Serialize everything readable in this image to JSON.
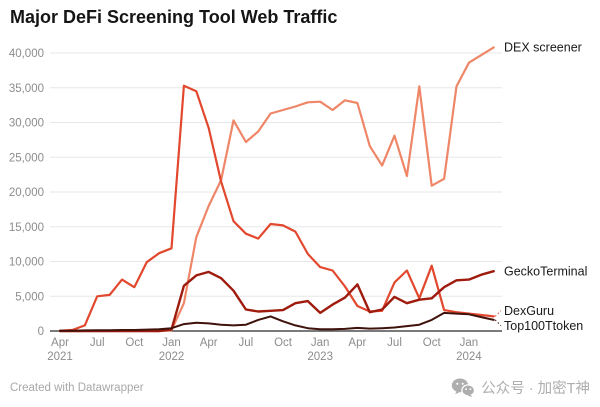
{
  "title": "Major DeFi Screening Tool Web Traffic",
  "footer": {
    "left": "Created with Datawrapper",
    "right": "公众号 · 加密T神"
  },
  "colors": {
    "grid": "#e7e7e7",
    "baseline": "#2a2a2a",
    "axis_text": "#8c8c8c",
    "legend_text": "#1a1a1a",
    "title_text": "#151515"
  },
  "chart_data": {
    "type": "line",
    "title": "Major DeFi Screening Tool Web Traffic",
    "xlabel": "",
    "ylabel": "",
    "ylim": [
      0,
      40000
    ],
    "grid": true,
    "legend_position": "right-of-line-ends",
    "x": [
      "Apr 2021",
      "May 2021",
      "Jun 2021",
      "Jul 2021",
      "Aug 2021",
      "Sep 2021",
      "Oct 2021",
      "Nov 2021",
      "Dec 2021",
      "Jan 2022",
      "Feb 2022",
      "Mar 2022",
      "Apr 2022",
      "May 2022",
      "Jun 2022",
      "Jul 2022",
      "Aug 2022",
      "Sep 2022",
      "Oct 2022",
      "Nov 2022",
      "Dec 2022",
      "Jan 2023",
      "Feb 2023",
      "Mar 2023",
      "Apr 2023",
      "May 2023",
      "Jun 2023",
      "Jul 2023",
      "Aug 2023",
      "Sep 2023",
      "Oct 2023",
      "Nov 2023",
      "Dec 2023",
      "Jan 2024",
      "Feb 2024",
      "Mar 2024"
    ],
    "x_ticks": [
      {
        "i": 0,
        "month": "Apr",
        "year": "2021"
      },
      {
        "i": 3,
        "month": "Jul",
        "year": ""
      },
      {
        "i": 6,
        "month": "Oct",
        "year": ""
      },
      {
        "i": 9,
        "month": "Jan",
        "year": "2022"
      },
      {
        "i": 12,
        "month": "Apr",
        "year": ""
      },
      {
        "i": 15,
        "month": "Jul",
        "year": ""
      },
      {
        "i": 18,
        "month": "Oct",
        "year": ""
      },
      {
        "i": 21,
        "month": "Jan",
        "year": "2023"
      },
      {
        "i": 24,
        "month": "Apr",
        "year": ""
      },
      {
        "i": 27,
        "month": "Jul",
        "year": ""
      },
      {
        "i": 30,
        "month": "Oct",
        "year": ""
      },
      {
        "i": 33,
        "month": "Jan",
        "year": "2024"
      }
    ],
    "y_ticks": [
      {
        "v": 0,
        "label": "0"
      },
      {
        "v": 5000,
        "label": "5,000"
      },
      {
        "v": 10000,
        "label": "10,000"
      },
      {
        "v": 15000,
        "label": "15,000"
      },
      {
        "v": 20000,
        "label": "20,000"
      },
      {
        "v": 25000,
        "label": "25,000"
      },
      {
        "v": 30000,
        "label": "30,000"
      },
      {
        "v": 35000,
        "label": "35,000"
      },
      {
        "v": 40000,
        "label": "40,000"
      }
    ],
    "series": [
      {
        "name": "DEX screener",
        "color": "#ee8667",
        "width": 2.2,
        "values": [
          0,
          0,
          0,
          0,
          0,
          0,
          0,
          0,
          0,
          100,
          4000,
          13500,
          18000,
          21700,
          30300,
          27200,
          28700,
          31300,
          31800,
          32300,
          32900,
          33000,
          31800,
          33200,
          32800,
          26600,
          23800,
          28100,
          22300,
          35200,
          20900,
          21900,
          35200,
          38600,
          39700,
          40800
        ]
      },
      {
        "name": "DexGuru",
        "color": "#e2482e",
        "width": 2.2,
        "values": [
          50,
          150,
          800,
          5000,
          5200,
          7400,
          6300,
          9900,
          11200,
          11900,
          35300,
          34500,
          29200,
          21500,
          15800,
          14000,
          13300,
          15400,
          15200,
          14300,
          11100,
          9200,
          8700,
          6400,
          3600,
          2800,
          2900,
          7000,
          8700,
          4700,
          9400,
          3000,
          2700,
          2500,
          2300,
          2100
        ]
      },
      {
        "name": "GeckoTerminal",
        "color": "#9e1b0e",
        "width": 2.4,
        "values": [
          0,
          0,
          0,
          0,
          0,
          0,
          0,
          0,
          0,
          200,
          6500,
          8000,
          8500,
          7600,
          5800,
          3100,
          2800,
          2900,
          3000,
          4000,
          4300,
          2600,
          3800,
          4800,
          6700,
          2700,
          3100,
          4900,
          4000,
          4500,
          4700,
          6300,
          7300,
          7400,
          8100,
          8600
        ]
      },
      {
        "name": "Top100Ttoken",
        "color": "#3f120b",
        "width": 2.0,
        "values": [
          30,
          50,
          80,
          100,
          120,
          150,
          150,
          200,
          250,
          400,
          1000,
          1200,
          1100,
          900,
          800,
          900,
          1600,
          2100,
          1400,
          800,
          400,
          250,
          250,
          300,
          450,
          350,
          400,
          500,
          700,
          900,
          1600,
          2600,
          2500,
          2400,
          2000,
          1600
        ]
      }
    ]
  }
}
